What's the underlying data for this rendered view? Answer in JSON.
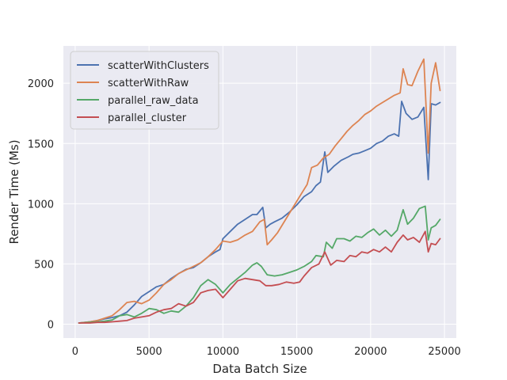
{
  "colors": {
    "background": "#ffffff",
    "plot_background": "#eaeaf2",
    "grid": "#ffffff",
    "text": "#262626"
  },
  "chart_data": {
    "type": "line",
    "title": "",
    "xlabel": "Data Batch Size",
    "ylabel": "Render Time (Ms)",
    "xlim": [
      -800,
      25800
    ],
    "ylim": [
      -115,
      2310
    ],
    "xticks": [
      0,
      5000,
      10000,
      15000,
      20000,
      25000
    ],
    "xtick_labels": [
      "0",
      "5000",
      "10000",
      "15000",
      "20000",
      "25000"
    ],
    "yticks": [
      0,
      500,
      1000,
      1500,
      2000
    ],
    "ytick_labels": [
      "0",
      "500",
      "1000",
      "1500",
      "2000"
    ],
    "grid": true,
    "legend_position": "top-left",
    "series": [
      {
        "name": "scatterWithClusters",
        "color": "#4c72b0",
        "points": [
          [
            250,
            10
          ],
          [
            1000,
            20
          ],
          [
            1500,
            30
          ],
          [
            2000,
            45
          ],
          [
            2500,
            55
          ],
          [
            3000,
            70
          ],
          [
            3500,
            100
          ],
          [
            4000,
            160
          ],
          [
            4500,
            230
          ],
          [
            5000,
            270
          ],
          [
            5500,
            310
          ],
          [
            6000,
            330
          ],
          [
            6500,
            380
          ],
          [
            7000,
            420
          ],
          [
            7500,
            455
          ],
          [
            8000,
            470
          ],
          [
            8500,
            510
          ],
          [
            9000,
            560
          ],
          [
            9500,
            600
          ],
          [
            9800,
            620
          ],
          [
            10000,
            710
          ],
          [
            10500,
            770
          ],
          [
            11000,
            830
          ],
          [
            11500,
            870
          ],
          [
            12000,
            910
          ],
          [
            12300,
            910
          ],
          [
            12500,
            940
          ],
          [
            12700,
            970
          ],
          [
            12900,
            800
          ],
          [
            13200,
            830
          ],
          [
            13500,
            850
          ],
          [
            14000,
            880
          ],
          [
            14500,
            930
          ],
          [
            15000,
            990
          ],
          [
            15500,
            1060
          ],
          [
            16000,
            1100
          ],
          [
            16300,
            1150
          ],
          [
            16600,
            1180
          ],
          [
            16900,
            1430
          ],
          [
            17100,
            1260
          ],
          [
            17500,
            1310
          ],
          [
            18000,
            1360
          ],
          [
            18500,
            1390
          ],
          [
            18800,
            1410
          ],
          [
            19200,
            1420
          ],
          [
            19600,
            1440
          ],
          [
            20000,
            1460
          ],
          [
            20400,
            1500
          ],
          [
            20800,
            1520
          ],
          [
            21200,
            1560
          ],
          [
            21600,
            1580
          ],
          [
            21900,
            1560
          ],
          [
            22100,
            1850
          ],
          [
            22400,
            1750
          ],
          [
            22800,
            1700
          ],
          [
            23200,
            1720
          ],
          [
            23600,
            1800
          ],
          [
            23900,
            1200
          ],
          [
            24100,
            1830
          ],
          [
            24400,
            1820
          ],
          [
            24700,
            1840
          ]
        ]
      },
      {
        "name": "scatterWithRaw",
        "color": "#dd8452",
        "points": [
          [
            250,
            10
          ],
          [
            1000,
            20
          ],
          [
            1500,
            30
          ],
          [
            2000,
            50
          ],
          [
            2500,
            70
          ],
          [
            3000,
            120
          ],
          [
            3500,
            180
          ],
          [
            4000,
            190
          ],
          [
            4500,
            170
          ],
          [
            5000,
            200
          ],
          [
            5500,
            260
          ],
          [
            6000,
            330
          ],
          [
            6500,
            370
          ],
          [
            7000,
            420
          ],
          [
            7500,
            450
          ],
          [
            8000,
            480
          ],
          [
            8500,
            510
          ],
          [
            9000,
            560
          ],
          [
            9500,
            620
          ],
          [
            10000,
            690
          ],
          [
            10500,
            680
          ],
          [
            11000,
            700
          ],
          [
            11500,
            740
          ],
          [
            12000,
            770
          ],
          [
            12500,
            850
          ],
          [
            12800,
            870
          ],
          [
            13000,
            660
          ],
          [
            13300,
            700
          ],
          [
            13700,
            760
          ],
          [
            14200,
            860
          ],
          [
            14700,
            960
          ],
          [
            15200,
            1060
          ],
          [
            15700,
            1160
          ],
          [
            16000,
            1300
          ],
          [
            16400,
            1320
          ],
          [
            16800,
            1380
          ],
          [
            17200,
            1410
          ],
          [
            17600,
            1480
          ],
          [
            18000,
            1540
          ],
          [
            18400,
            1600
          ],
          [
            18800,
            1650
          ],
          [
            19200,
            1690
          ],
          [
            19600,
            1740
          ],
          [
            20000,
            1770
          ],
          [
            20400,
            1810
          ],
          [
            20800,
            1840
          ],
          [
            21200,
            1870
          ],
          [
            21600,
            1900
          ],
          [
            22000,
            1920
          ],
          [
            22200,
            2120
          ],
          [
            22500,
            1990
          ],
          [
            22800,
            1980
          ],
          [
            23200,
            2100
          ],
          [
            23600,
            2200
          ],
          [
            23900,
            1420
          ],
          [
            24100,
            2000
          ],
          [
            24400,
            2170
          ],
          [
            24700,
            1940
          ]
        ]
      },
      {
        "name": "parallel_raw_data",
        "color": "#55a868",
        "points": [
          [
            250,
            10
          ],
          [
            1000,
            15
          ],
          [
            1500,
            20
          ],
          [
            2000,
            25
          ],
          [
            2500,
            35
          ],
          [
            3000,
            70
          ],
          [
            3500,
            80
          ],
          [
            4000,
            60
          ],
          [
            4500,
            90
          ],
          [
            5000,
            130
          ],
          [
            5500,
            120
          ],
          [
            6000,
            90
          ],
          [
            6500,
            110
          ],
          [
            7000,
            100
          ],
          [
            7500,
            150
          ],
          [
            8000,
            220
          ],
          [
            8500,
            320
          ],
          [
            9000,
            370
          ],
          [
            9500,
            330
          ],
          [
            10000,
            260
          ],
          [
            10500,
            330
          ],
          [
            11000,
            380
          ],
          [
            11500,
            430
          ],
          [
            12000,
            490
          ],
          [
            12300,
            510
          ],
          [
            12600,
            480
          ],
          [
            13000,
            410
          ],
          [
            13500,
            400
          ],
          [
            14000,
            410
          ],
          [
            14500,
            430
          ],
          [
            15000,
            450
          ],
          [
            15500,
            480
          ],
          [
            16000,
            520
          ],
          [
            16300,
            570
          ],
          [
            16800,
            560
          ],
          [
            17000,
            680
          ],
          [
            17400,
            630
          ],
          [
            17700,
            710
          ],
          [
            18200,
            710
          ],
          [
            18600,
            690
          ],
          [
            19000,
            730
          ],
          [
            19400,
            720
          ],
          [
            19800,
            760
          ],
          [
            20200,
            790
          ],
          [
            20600,
            740
          ],
          [
            21000,
            780
          ],
          [
            21400,
            730
          ],
          [
            21800,
            780
          ],
          [
            22200,
            950
          ],
          [
            22500,
            830
          ],
          [
            22900,
            880
          ],
          [
            23300,
            960
          ],
          [
            23700,
            980
          ],
          [
            23900,
            700
          ],
          [
            24100,
            800
          ],
          [
            24400,
            820
          ],
          [
            24700,
            870
          ]
        ]
      },
      {
        "name": "parallel_cluster",
        "color": "#c44e52",
        "points": [
          [
            250,
            10
          ],
          [
            1000,
            10
          ],
          [
            1500,
            15
          ],
          [
            2000,
            15
          ],
          [
            2500,
            20
          ],
          [
            3000,
            25
          ],
          [
            3500,
            30
          ],
          [
            4000,
            50
          ],
          [
            4500,
            60
          ],
          [
            5000,
            70
          ],
          [
            5500,
            100
          ],
          [
            6000,
            120
          ],
          [
            6500,
            130
          ],
          [
            7000,
            170
          ],
          [
            7500,
            150
          ],
          [
            8000,
            180
          ],
          [
            8500,
            260
          ],
          [
            9000,
            280
          ],
          [
            9500,
            290
          ],
          [
            10000,
            220
          ],
          [
            10500,
            290
          ],
          [
            11000,
            360
          ],
          [
            11500,
            380
          ],
          [
            12000,
            370
          ],
          [
            12500,
            360
          ],
          [
            12900,
            320
          ],
          [
            13300,
            320
          ],
          [
            13800,
            330
          ],
          [
            14300,
            350
          ],
          [
            14800,
            340
          ],
          [
            15200,
            350
          ],
          [
            15500,
            400
          ],
          [
            16000,
            470
          ],
          [
            16500,
            500
          ],
          [
            16900,
            600
          ],
          [
            17300,
            490
          ],
          [
            17700,
            530
          ],
          [
            18200,
            520
          ],
          [
            18600,
            570
          ],
          [
            19000,
            560
          ],
          [
            19400,
            600
          ],
          [
            19800,
            590
          ],
          [
            20200,
            620
          ],
          [
            20600,
            600
          ],
          [
            21000,
            640
          ],
          [
            21400,
            600
          ],
          [
            21800,
            680
          ],
          [
            22200,
            740
          ],
          [
            22500,
            700
          ],
          [
            22900,
            720
          ],
          [
            23300,
            680
          ],
          [
            23700,
            770
          ],
          [
            23900,
            600
          ],
          [
            24100,
            670
          ],
          [
            24400,
            660
          ],
          [
            24700,
            710
          ]
        ]
      }
    ]
  }
}
